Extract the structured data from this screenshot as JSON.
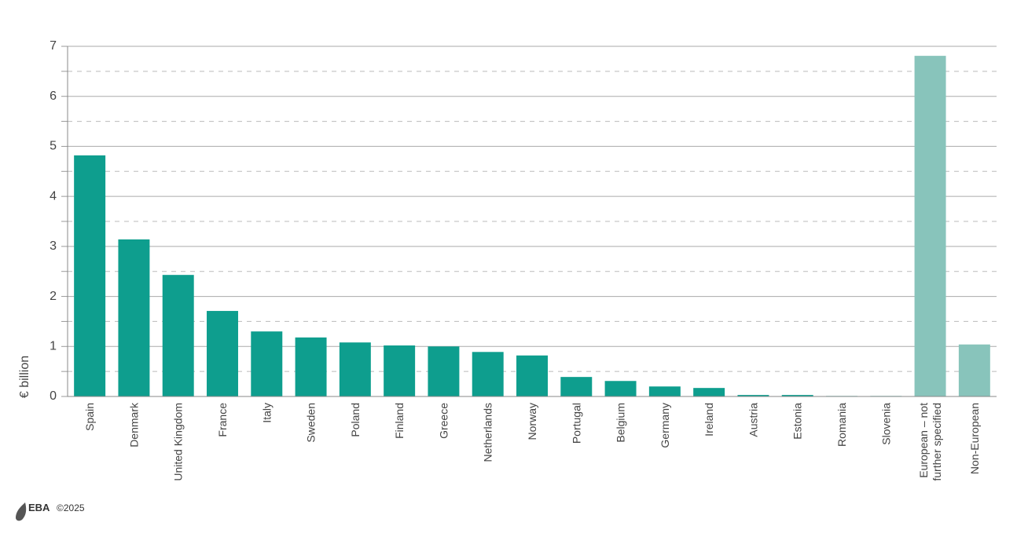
{
  "chart_data": {
    "type": "bar",
    "y_label": "€ billion",
    "categories": [
      "Spain",
      "Denmark",
      "United Kingdom",
      "France",
      "Italy",
      "Sweden",
      "Poland",
      "Finland",
      "Greece",
      "Netherlands",
      "Norway",
      "Portugal",
      "Belgium",
      "Germany",
      "Ireland",
      "Austria",
      "Estonia",
      "Romania",
      "Slovenia",
      "European – not\nfurther specified",
      "Non-European"
    ],
    "values": [
      4.82,
      3.14,
      2.43,
      1.71,
      1.3,
      1.18,
      1.08,
      1.02,
      1.0,
      0.89,
      0.82,
      0.39,
      0.31,
      0.2,
      0.17,
      0.03,
      0.03,
      0.01,
      0.01,
      6.81,
      1.04
    ],
    "colors": [
      "#0e9e8e",
      "#0e9e8e",
      "#0e9e8e",
      "#0e9e8e",
      "#0e9e8e",
      "#0e9e8e",
      "#0e9e8e",
      "#0e9e8e",
      "#0e9e8e",
      "#0e9e8e",
      "#0e9e8e",
      "#0e9e8e",
      "#0e9e8e",
      "#0e9e8e",
      "#0e9e8e",
      "#0e9e8e",
      "#0e9e8e",
      "#0e9e8e",
      "#0e9e8e",
      "#88c4bb",
      "#88c4bb"
    ],
    "ylim": [
      0,
      7
    ],
    "yticks": [
      0,
      1,
      2,
      3,
      4,
      5,
      6,
      7
    ],
    "minor_yticks": [
      0.5,
      1.5,
      2.5,
      3.5,
      4.5,
      5.5,
      6.5
    ],
    "grid": true
  },
  "footer": {
    "logo": "EBA",
    "copyright": "©2025"
  }
}
